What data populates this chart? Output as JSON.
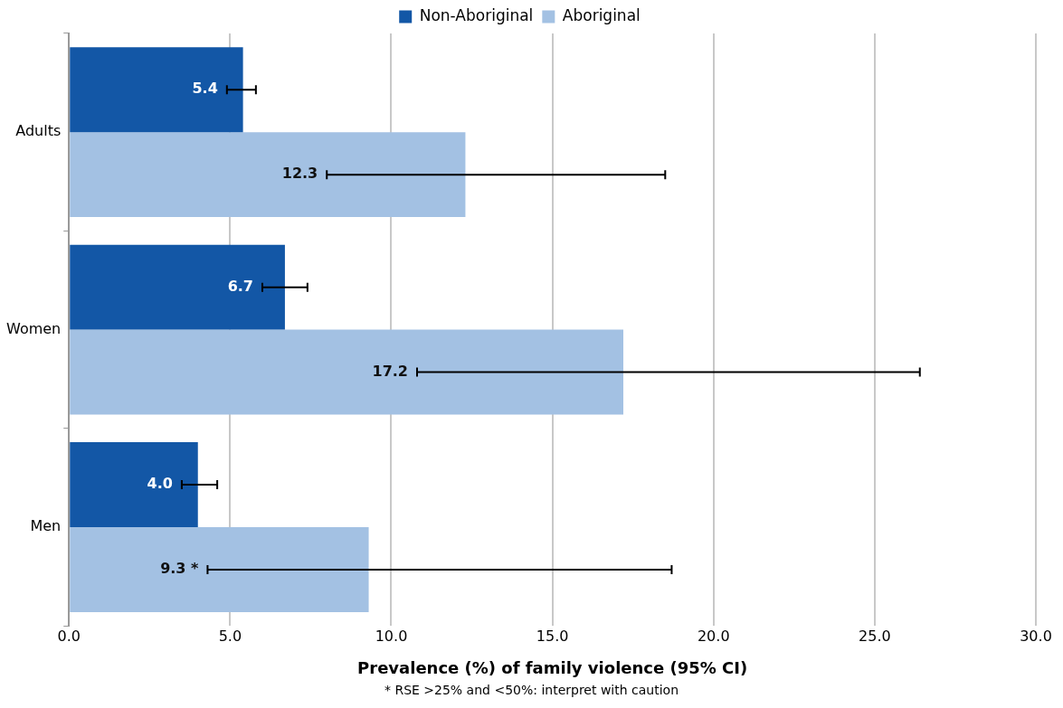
{
  "chart_data": {
    "type": "bar",
    "orientation": "horizontal",
    "xlabel": "Prevalence (%) of family violence (95% CI)",
    "categories": [
      "Adults",
      "Women",
      "Men"
    ],
    "series": [
      {
        "name": "Non-Aboriginal",
        "color": "#1357a6",
        "values": [
          5.4,
          6.7,
          4.0
        ],
        "errors": [
          [
            4.9,
            5.8
          ],
          [
            6.0,
            7.4
          ],
          [
            3.5,
            4.6
          ]
        ],
        "value_labels": [
          "5.4",
          "6.7",
          "4.0"
        ]
      },
      {
        "name": "Aboriginal",
        "color": "#a3c1e3",
        "values": [
          12.3,
          17.2,
          9.3
        ],
        "errors": [
          [
            8.0,
            18.5
          ],
          [
            10.8,
            26.4
          ],
          [
            4.3,
            18.7
          ]
        ],
        "value_labels": [
          "12.3",
          "17.2",
          "9.3 *"
        ]
      }
    ],
    "xlim": [
      0,
      30
    ],
    "xticks": [
      {
        "value": 0,
        "label": "0.0"
      },
      {
        "value": 5,
        "label": "5.0"
      },
      {
        "value": 10,
        "label": "10.0"
      },
      {
        "value": 15,
        "label": "15.0"
      },
      {
        "value": 20,
        "label": "20.0"
      },
      {
        "value": 25,
        "label": "25.0"
      },
      {
        "value": 30,
        "label": "30.0"
      }
    ],
    "grid": "x",
    "legend": "top",
    "annotations": [
      "* RSE >25% and <50%: interpret with caution"
    ]
  }
}
